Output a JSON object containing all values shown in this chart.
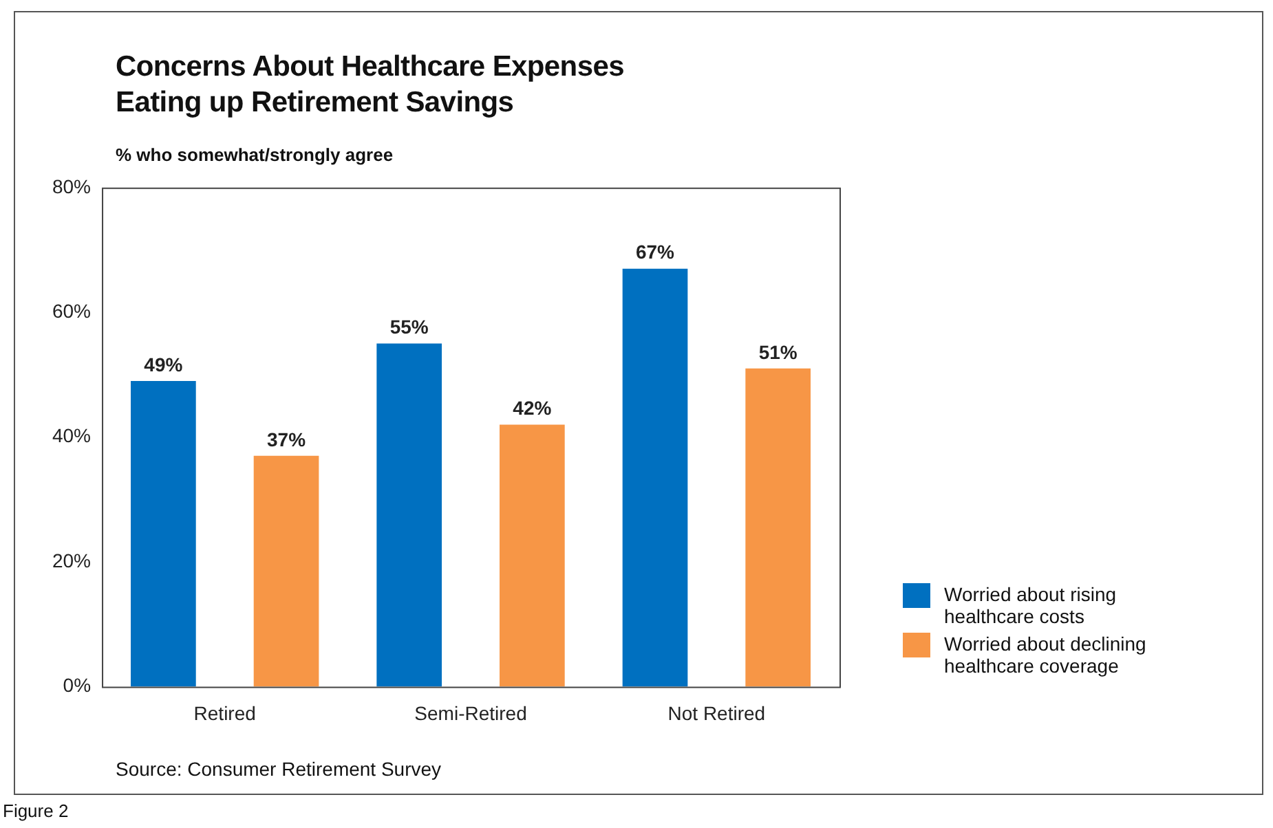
{
  "chart_data": {
    "type": "bar",
    "title": "Concerns About Healthcare Expenses\nEating up Retirement Savings",
    "subtitle": "% who somewhat/strongly agree",
    "categories": [
      "Retired",
      "Semi-Retired",
      "Not Retired"
    ],
    "series": [
      {
        "name": "Worried about rising healthcare costs",
        "color": "#0070c0",
        "values": [
          49,
          55,
          67
        ],
        "value_labels": [
          "49%",
          "55%",
          "67%"
        ]
      },
      {
        "name": "Worried about declining healthcare coverage",
        "color": "#f79646",
        "values": [
          37,
          42,
          51
        ],
        "value_labels": [
          "37%",
          "42%",
          "51%"
        ]
      }
    ],
    "ylim": [
      0,
      80
    ],
    "yticks": [
      {
        "value": 0,
        "label": "0%"
      },
      {
        "value": 20,
        "label": "20%"
      },
      {
        "value": 40,
        "label": "40%"
      },
      {
        "value": 60,
        "label": "60%"
      },
      {
        "value": 80,
        "label": "80%"
      }
    ],
    "grid": false,
    "legend": "right",
    "annotations": [
      "Source: Consumer Retirement Survey",
      "Figure 2"
    ]
  }
}
